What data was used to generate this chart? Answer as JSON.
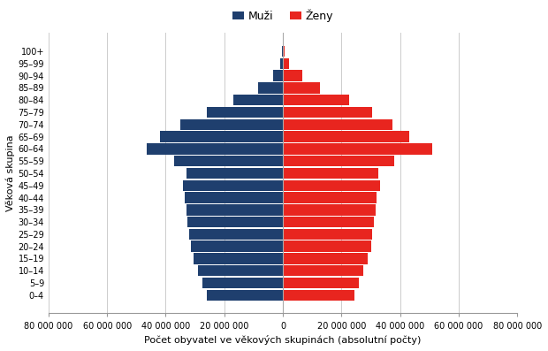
{
  "age_groups": [
    "0–4",
    "5–9",
    "10–14",
    "15–19",
    "20–24",
    "25–29",
    "30–34",
    "35–39",
    "40–44",
    "45–49",
    "50–54",
    "55–59",
    "60–64",
    "65–69",
    "70–74",
    "75–79",
    "80–84",
    "85–89",
    "90–94",
    "95–99",
    "100+"
  ],
  "males": [
    26000000,
    27500000,
    29000000,
    30500000,
    31500000,
    32000000,
    32500000,
    33000000,
    33500000,
    34000000,
    33000000,
    37000000,
    46500000,
    42000000,
    35000000,
    26000000,
    17000000,
    8500000,
    3500000,
    1000000,
    200000
  ],
  "females": [
    24500000,
    26000000,
    27500000,
    29000000,
    30000000,
    30500000,
    31000000,
    31500000,
    32000000,
    33000000,
    32500000,
    38000000,
    51000000,
    43000000,
    37500000,
    30500000,
    22500000,
    12500000,
    6500000,
    2200000,
    600000
  ],
  "male_color": "#1F3F6E",
  "female_color": "#E8251F",
  "xlabel": "Počet obyvatel ve věkových skupinách (absolutní počty)",
  "ylabel": "Věková skupina",
  "male_label": "Muži",
  "female_label": "Ženy",
  "xlim": 80000000,
  "xtick_values": [
    -80000000,
    -60000000,
    -40000000,
    -20000000,
    0,
    20000000,
    40000000,
    60000000,
    80000000
  ],
  "xtick_labels": [
    "80 000 000",
    "60 000 000",
    "40 000 000",
    "20 000 000",
    "0",
    "20 000 000",
    "40 000 000",
    "60 000 000",
    "80 000 000"
  ],
  "background_color": "#ffffff",
  "grid_color": "#cccccc"
}
